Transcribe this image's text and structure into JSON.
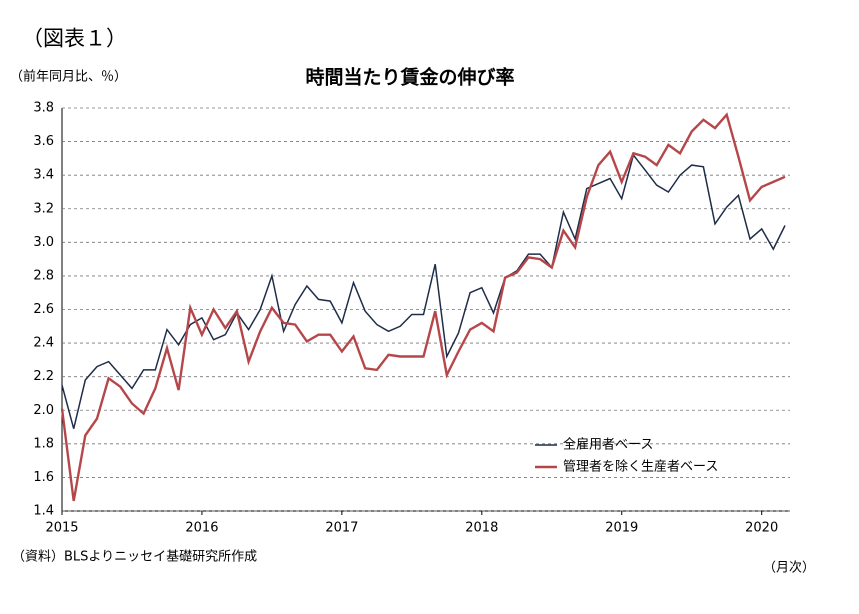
{
  "chart_data": {
    "type": "line",
    "figure_label": "（図表１）",
    "title": "時間当たり賃金の伸び率",
    "y_label": "（前年同月比、％）",
    "x_label": "（月次）",
    "source": "（資料）BLSよりニッセイ基礎研究所作成",
    "categories": [
      "2015",
      null,
      null,
      null,
      null,
      null,
      null,
      null,
      null,
      null,
      null,
      null,
      "2016",
      null,
      null,
      null,
      null,
      null,
      null,
      null,
      null,
      null,
      null,
      null,
      "2017",
      null,
      null,
      null,
      null,
      null,
      null,
      null,
      null,
      null,
      null,
      null,
      "2018",
      null,
      null,
      null,
      null,
      null,
      null,
      null,
      null,
      null,
      null,
      null,
      "2019",
      null,
      null,
      null,
      null,
      null,
      null,
      null,
      null,
      null,
      null,
      null,
      "2020",
      null,
      null
    ],
    "series": [
      {
        "name": "全雇用者ベース",
        "color": "#1f2d4a",
        "values": [
          2.15,
          1.89,
          2.18,
          2.26,
          2.29,
          2.21,
          2.13,
          2.24,
          2.24,
          2.48,
          2.39,
          2.51,
          2.55,
          2.42,
          2.45,
          2.58,
          2.48,
          2.6,
          2.8,
          2.47,
          2.63,
          2.74,
          2.66,
          2.65,
          2.52,
          2.76,
          2.59,
          2.51,
          2.47,
          2.5,
          2.57,
          2.57,
          2.87,
          2.32,
          2.46,
          2.7,
          2.73,
          2.58,
          2.79,
          2.83,
          2.93,
          2.93,
          2.85,
          3.18,
          3.02,
          3.32,
          3.35,
          3.38,
          3.26,
          3.52,
          3.43,
          3.34,
          3.3,
          3.4,
          3.46,
          3.45,
          3.11,
          3.21,
          3.28,
          3.02,
          3.08,
          2.96,
          3.1
        ]
      },
      {
        "name": "管理者を除く生産者ベース",
        "color": "#b5474a",
        "values": [
          2.01,
          1.46,
          1.85,
          1.95,
          2.19,
          2.14,
          2.04,
          1.98,
          2.13,
          2.37,
          2.12,
          2.61,
          2.45,
          2.6,
          2.49,
          2.59,
          2.29,
          2.47,
          2.61,
          2.52,
          2.51,
          2.41,
          2.45,
          2.45,
          2.35,
          2.44,
          2.25,
          2.24,
          2.33,
          2.32,
          2.32,
          2.32,
          2.59,
          2.21,
          2.35,
          2.48,
          2.52,
          2.47,
          2.79,
          2.82,
          2.91,
          2.9,
          2.85,
          3.07,
          2.97,
          3.27,
          3.46,
          3.54,
          3.36,
          3.53,
          3.51,
          3.46,
          3.58,
          3.53,
          3.66,
          3.73,
          3.68,
          3.76,
          3.51,
          3.25,
          3.33,
          3.36,
          3.39
        ]
      }
    ],
    "ylim": [
      1.4,
      3.8
    ],
    "yticks": [
      1.4,
      1.6,
      1.8,
      {
        "value": 2,
        "label": "2.0"
      },
      2.2,
      2.4,
      2.6,
      2.8,
      {
        "value": 3,
        "label": "3.0"
      },
      3.2,
      3.4,
      3.6,
      3.8
    ],
    "grid": true,
    "legend": "lower right"
  }
}
